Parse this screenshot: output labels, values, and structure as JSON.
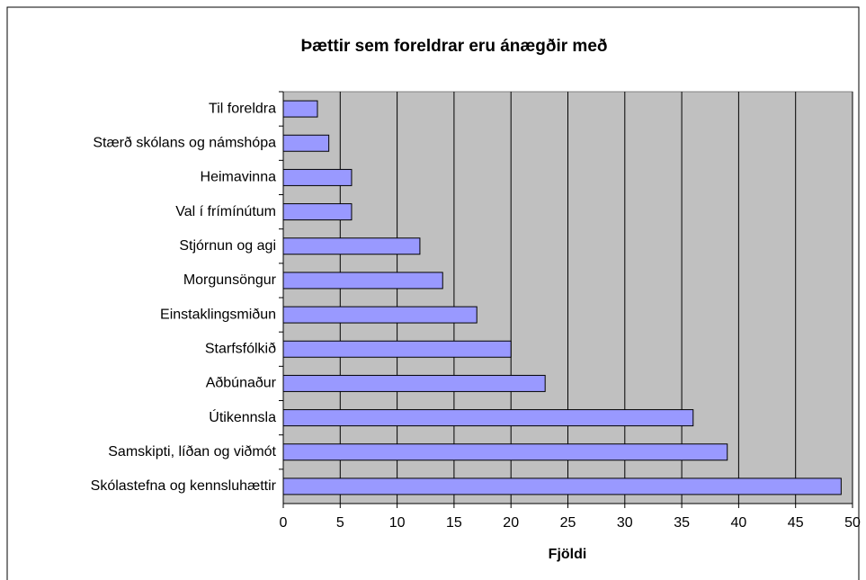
{
  "chart_data": {
    "type": "barh",
    "title": "Þættir sem foreldrar eru ánægðir með",
    "x_label": "Fjöldi",
    "categories": [
      "Til foreldra",
      "Stærð skólans og námshópa",
      "Heimavinna",
      "Val í frímínútum",
      "Stjórnun og agi",
      "Morgunsöngur",
      "Einstaklingsmiðun",
      "Starfsfólkið",
      "Aðbúnaður",
      "Útikennsla",
      "Samskipti, líðan og viðmót",
      "Skólastefna og kennsluhættir"
    ],
    "values": [
      3,
      4,
      6,
      6,
      12,
      14,
      17,
      20,
      23,
      36,
      39,
      49
    ],
    "color": "#9999ff",
    "plot_background": "#c0c0c0",
    "xlim": [
      0,
      50
    ],
    "xticks": [
      0,
      5,
      10,
      15,
      20,
      25,
      30,
      35,
      40,
      45,
      50
    ],
    "grid": true
  }
}
